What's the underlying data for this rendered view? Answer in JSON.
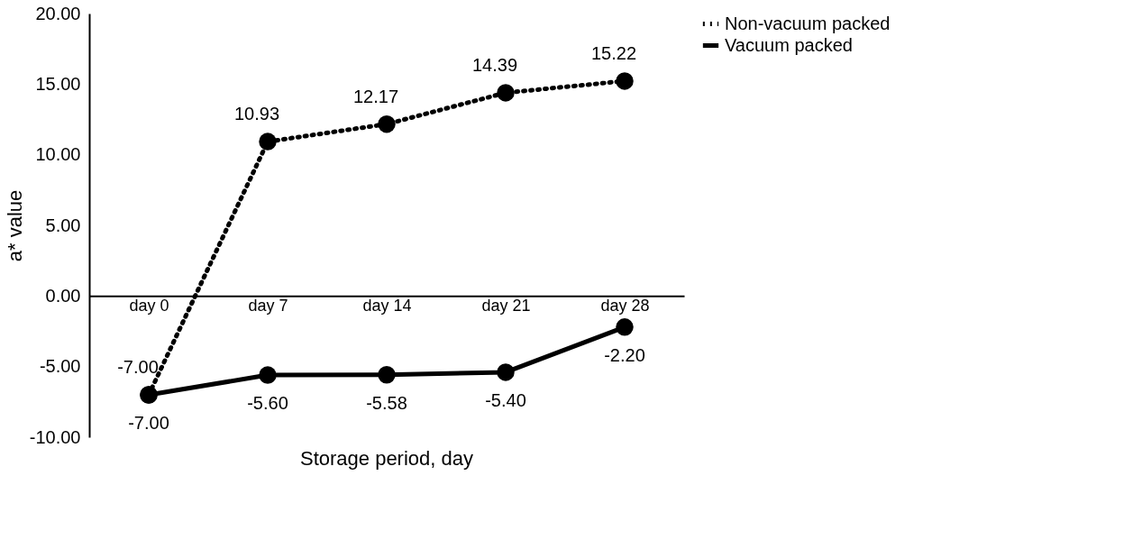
{
  "chart_data": {
    "type": "line",
    "xlabel": "Storage period, day",
    "ylabel": "a* value",
    "categories": [
      "day 0",
      "day 7",
      "day 14",
      "day 21",
      "day 28"
    ],
    "ylim": [
      -10,
      20
    ],
    "yticks": [
      {
        "value": -10,
        "label": "-10.00"
      },
      {
        "value": -5,
        "label": "-5.00"
      },
      {
        "value": 0,
        "label": "0.00"
      },
      {
        "value": 5,
        "label": "5.00"
      },
      {
        "value": 10,
        "label": "10.00"
      },
      {
        "value": 15,
        "label": "15.00"
      },
      {
        "value": 20,
        "label": "20.00"
      }
    ],
    "series": [
      {
        "name": "Non-vacuum packed",
        "color": "#000000",
        "line_style": "dotted",
        "values": [
          -7.0,
          10.93,
          12.17,
          14.39,
          15.22
        ],
        "value_labels": [
          "-7.00",
          "10.93",
          "12.17",
          "14.39",
          "15.22"
        ]
      },
      {
        "name": "Vacuum packed",
        "color": "#000000",
        "line_style": "solid",
        "values": [
          -7.0,
          -5.6,
          -5.58,
          -5.4,
          -2.2
        ],
        "value_labels": [
          "-7.00",
          "-5.60",
          "-5.58",
          "-5.40",
          "-2.20"
        ]
      }
    ],
    "marker": "circle",
    "legend": "right",
    "grid": false
  }
}
